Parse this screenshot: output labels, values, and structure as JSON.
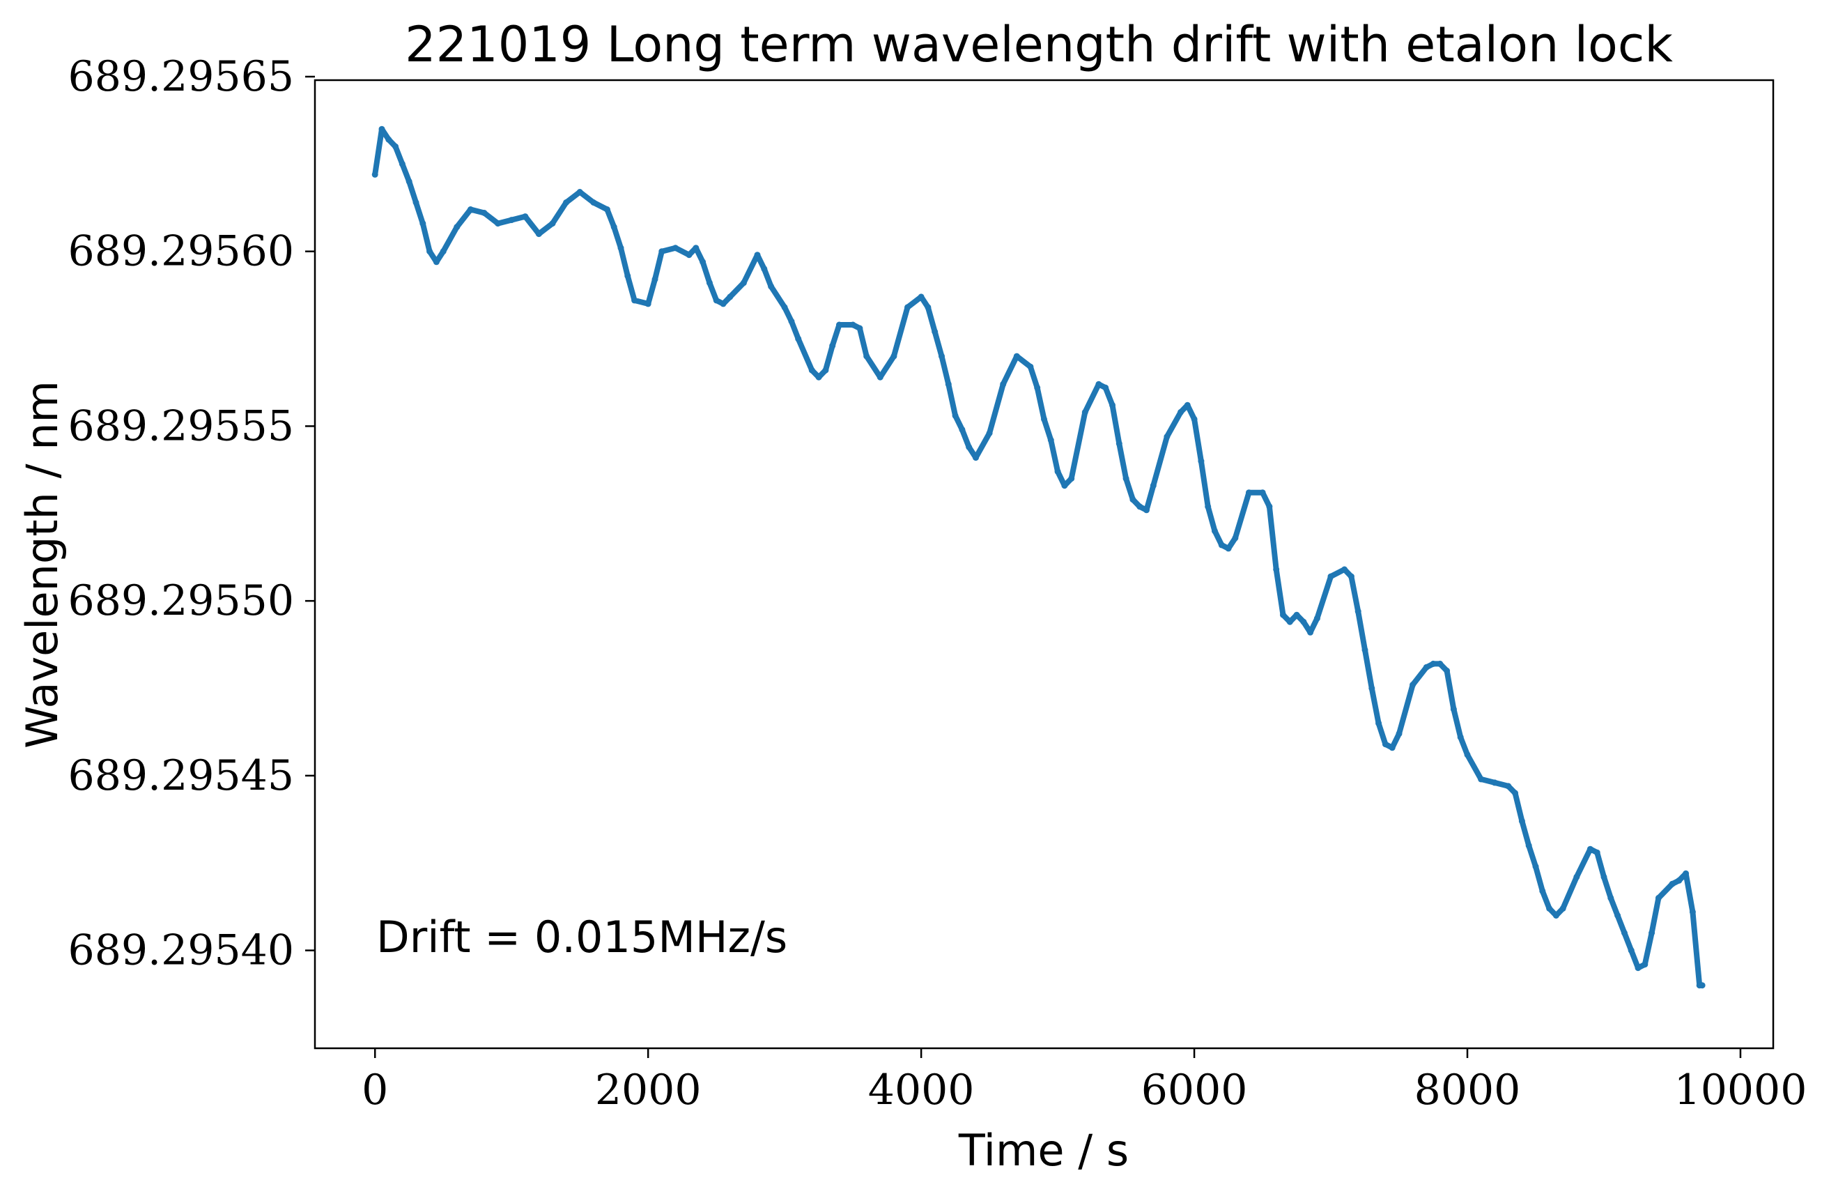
{
  "chart_data": {
    "type": "scatter",
    "title": "221019 Long term wavelength drift with etalon lock",
    "xlabel": "Time / s",
    "ylabel": "Wavelength / nm",
    "xlim": [
      -440,
      10240
    ],
    "ylim": [
      689.295372,
      689.295649
    ],
    "xticks": [
      0,
      2000,
      4000,
      6000,
      8000,
      10000
    ],
    "xtick_labels": [
      "0",
      "2000",
      "4000",
      "6000",
      "8000",
      "10000"
    ],
    "yticks": [
      689.2954,
      689.29545,
      689.2955,
      689.29555,
      689.2956,
      689.29565
    ],
    "ytick_labels": [
      "689.29540",
      "689.29545",
      "689.29550",
      "689.29555",
      "689.29560",
      "689.29565"
    ],
    "grid": false,
    "annotation": "Drift = 0.015MHz/s",
    "series": [
      {
        "color": "#1f77b4",
        "x": [
          0,
          50,
          100,
          150,
          200,
          250,
          300,
          350,
          400,
          450,
          500,
          600,
          700,
          800,
          900,
          1000,
          1100,
          1200,
          1300,
          1400,
          1500,
          1600,
          1700,
          1750,
          1800,
          1850,
          1900,
          2000,
          2050,
          2100,
          2200,
          2300,
          2350,
          2400,
          2450,
          2500,
          2550,
          2600,
          2700,
          2800,
          2850,
          2900,
          3000,
          3050,
          3100,
          3200,
          3250,
          3300,
          3350,
          3400,
          3500,
          3550,
          3600,
          3700,
          3800,
          3900,
          4000,
          4050,
          4100,
          4150,
          4200,
          4250,
          4300,
          4350,
          4400,
          4500,
          4600,
          4700,
          4800,
          4850,
          4900,
          4950,
          5000,
          5050,
          5100,
          5200,
          5300,
          5350,
          5400,
          5450,
          5500,
          5550,
          5600,
          5650,
          5700,
          5800,
          5900,
          5950,
          6000,
          6050,
          6100,
          6150,
          6200,
          6250,
          6300,
          6400,
          6500,
          6550,
          6600,
          6650,
          6700,
          6750,
          6800,
          6850,
          6900,
          7000,
          7100,
          7150,
          7200,
          7250,
          7300,
          7350,
          7400,
          7450,
          7500,
          7600,
          7700,
          7750,
          7800,
          7850,
          7900,
          7950,
          8000,
          8100,
          8200,
          8300,
          8350,
          8400,
          8450,
          8500,
          8550,
          8600,
          8650,
          8700,
          8800,
          8900,
          8950,
          9000,
          9050,
          9100,
          9150,
          9200,
          9250,
          9300,
          9350,
          9400,
          9500,
          9550,
          9600,
          9650,
          9700,
          9720
        ],
        "y": [
          689.295622,
          689.295635,
          689.295632,
          689.29563,
          689.295625,
          689.29562,
          689.295614,
          689.295608,
          689.2956,
          689.295597,
          689.2956,
          689.295607,
          689.295612,
          689.295611,
          689.295608,
          689.295609,
          689.29561,
          689.295605,
          689.295608,
          689.295614,
          689.295617,
          689.295614,
          689.295612,
          689.295607,
          689.295601,
          689.295593,
          689.295586,
          689.295585,
          689.295592,
          689.2956,
          689.295601,
          689.295599,
          689.295601,
          689.295597,
          689.295591,
          689.295586,
          689.295585,
          689.295587,
          689.295591,
          689.295599,
          689.295595,
          689.29559,
          689.295584,
          689.29558,
          689.295575,
          689.295566,
          689.295564,
          689.295566,
          689.295573,
          689.295579,
          689.295579,
          689.295578,
          689.29557,
          689.295564,
          689.29557,
          689.295584,
          689.295587,
          689.295584,
          689.295577,
          689.29557,
          689.295562,
          689.295553,
          689.295549,
          689.295544,
          689.295541,
          689.295548,
          689.295562,
          689.29557,
          689.295567,
          689.295561,
          689.295552,
          689.295546,
          689.295537,
          689.295533,
          689.295535,
          689.295554,
          689.295562,
          689.295561,
          689.295556,
          689.295545,
          689.295535,
          689.295529,
          689.295527,
          689.295526,
          689.295533,
          689.295547,
          689.295554,
          689.295556,
          689.295552,
          689.29554,
          689.295527,
          689.29552,
          689.295516,
          689.295515,
          689.295518,
          689.295531,
          689.295531,
          689.295527,
          689.295509,
          689.295496,
          689.295494,
          689.295496,
          689.295494,
          689.295491,
          689.295495,
          689.295507,
          689.295509,
          689.295507,
          689.295497,
          689.295486,
          689.295475,
          689.295465,
          689.295459,
          689.295458,
          689.295462,
          689.295476,
          689.295481,
          689.295482,
          689.295482,
          689.29548,
          689.295469,
          689.295461,
          689.295456,
          689.295449,
          689.295448,
          689.295447,
          689.295445,
          689.295437,
          689.29543,
          689.295424,
          689.295417,
          689.295412,
          689.29541,
          689.295412,
          689.295421,
          689.295429,
          689.295428,
          689.295421,
          689.295415,
          689.29541,
          689.295405,
          689.2954,
          689.295395,
          689.295396,
          689.295405,
          689.295415,
          689.295419,
          689.29542,
          689.295422,
          689.295411,
          689.29539,
          689.29539
        ]
      }
    ]
  }
}
